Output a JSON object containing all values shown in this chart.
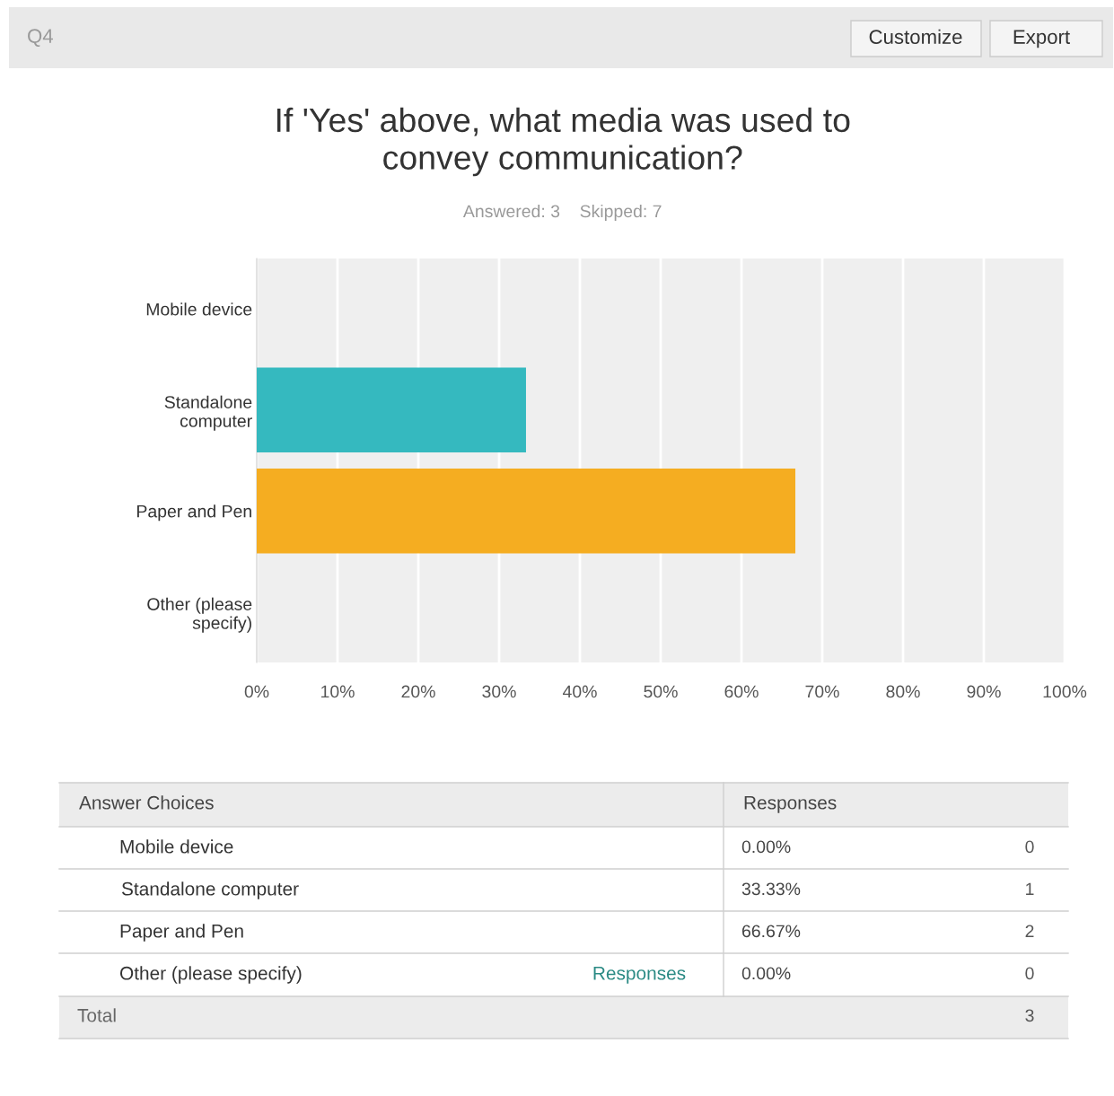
{
  "chart_data": {
    "type": "bar",
    "orientation": "horizontal",
    "title": "If 'Yes' above, what media was used to\nconvey communication?",
    "subtitle": "Answered: 3    Skipped: 7",
    "categories": [
      "Mobile device",
      "Standalone\ncomputer",
      "Paper and Pen",
      "Other (please\nspecify)"
    ],
    "values": [
      0,
      33.33,
      66.67,
      0
    ],
    "colors": [
      "#35b9bf",
      "#35b9bf",
      "#f5ad21",
      "#f5ad21"
    ],
    "xlim": [
      0,
      100
    ],
    "xticks": [
      {
        "value": 0,
        "label": "0%"
      },
      {
        "value": 10,
        "label": "10%"
      },
      {
        "value": 20,
        "label": "20%"
      },
      {
        "value": 30,
        "label": "30%"
      },
      {
        "value": 40,
        "label": "40%"
      },
      {
        "value": 50,
        "label": "50%"
      },
      {
        "value": 60,
        "label": "60%"
      },
      {
        "value": 70,
        "label": "70%"
      },
      {
        "value": 80,
        "label": "80%"
      },
      {
        "value": 90,
        "label": "90%"
      },
      {
        "value": 100,
        "label": "100%"
      }
    ],
    "grid": "x",
    "legend": false,
    "annotations": [
      "Q4",
      "Customize",
      "Export",
      "Answer Choices",
      "Responses",
      "Mobile device",
      "Standalone computer",
      "Paper and Pen",
      "Other (please specify)",
      "Responses",
      "0",
      "1",
      "2",
      "0",
      "Total",
      "3",
      "0.00%",
      "33.33%",
      "66.67%",
      "0.00%"
    ]
  }
}
